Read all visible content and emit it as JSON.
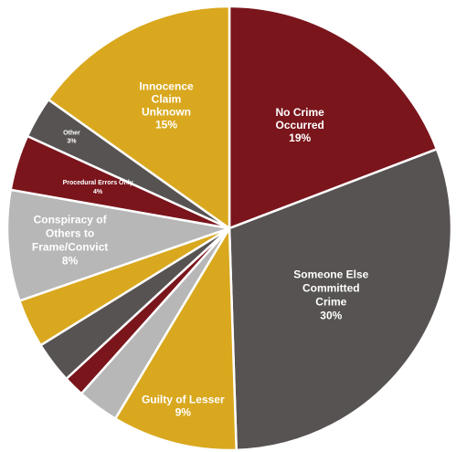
{
  "chart_data": {
    "type": "pie",
    "colors": {
      "maroon": "#7a151c",
      "charcoal": "#575352",
      "gold": "#d9a81e",
      "lightgray": "#b7b7b7"
    },
    "slices": [
      {
        "key": "no_crime",
        "label": "No Crime Occurred",
        "label_lines": [
          "No Crime",
          "Occurred"
        ],
        "pct_text": "19%",
        "value": 19,
        "color": "#7a151c"
      },
      {
        "key": "someone_else",
        "label": "Someone Else Committed Crime",
        "label_lines": [
          "Someone Else",
          "Committed",
          "Crime"
        ],
        "pct_text": "30%",
        "value": 30,
        "color": "#575352"
      },
      {
        "key": "guilty_lesser",
        "label": "Guilty of Lesser",
        "label_lines": [
          "Guilty of Lesser"
        ],
        "pct_text": "9%",
        "value": 9,
        "color": "#d9a81e"
      },
      {
        "key": "unlabeled_1",
        "label": "",
        "label_lines": [],
        "pct_text": "",
        "value": 3,
        "color": "#b7b7b7"
      },
      {
        "key": "unlabeled_2",
        "label": "",
        "label_lines": [],
        "pct_text": "",
        "value": 1.5,
        "color": "#7a151c"
      },
      {
        "key": "unlabeled_3",
        "label": "",
        "label_lines": [],
        "pct_text": "",
        "value": 3,
        "color": "#575352"
      },
      {
        "key": "unlabeled_4",
        "label": "",
        "label_lines": [],
        "pct_text": "",
        "value": 3.5,
        "color": "#d9a81e"
      },
      {
        "key": "conspiracy",
        "label": "Conspiracy of Others to Frame/Convict",
        "label_lines": [
          "Conspiracy of",
          "Others to",
          "Frame/Convict"
        ],
        "pct_text": "8%",
        "value": 8,
        "color": "#b7b7b7"
      },
      {
        "key": "procedural",
        "label": "Procedural Errors Only",
        "label_lines": [
          "Procedural Errors Only"
        ],
        "pct_text": "4%",
        "value": 4,
        "color": "#7a151c"
      },
      {
        "key": "other",
        "label": "Other",
        "label_lines": [
          "Other"
        ],
        "pct_text": "3%",
        "value": 3,
        "color": "#575352"
      },
      {
        "key": "innocence_unknown",
        "label": "Innocence Claim Unknown",
        "label_lines": [
          "Innocence",
          "Claim",
          "Unknown"
        ],
        "pct_text": "15%",
        "value": 15,
        "color": "#d9a81e"
      }
    ]
  }
}
